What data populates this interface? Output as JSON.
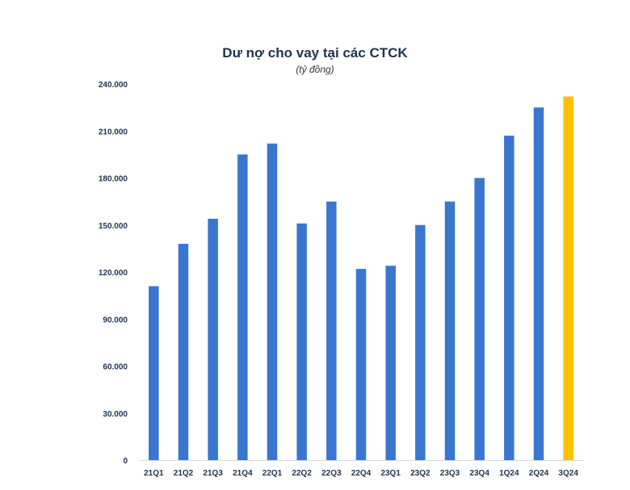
{
  "chart_data": {
    "type": "bar",
    "title": "Dư nợ cho vay tại các CTCK",
    "subtitle": "(tỷ đồng)",
    "xlabel": "",
    "ylabel": "",
    "categories": [
      "21Q1",
      "21Q2",
      "21Q3",
      "21Q4",
      "22Q1",
      "22Q2",
      "22Q3",
      "22Q4",
      "23Q1",
      "23Q2",
      "23Q3",
      "23Q4",
      "1Q24",
      "2Q24",
      "3Q24"
    ],
    "values": [
      111000,
      138000,
      154000,
      195000,
      202000,
      151000,
      165000,
      122000,
      124000,
      150000,
      165000,
      180000,
      207000,
      225000,
      232000
    ],
    "ylim": [
      0,
      240000
    ],
    "yticks": [
      0,
      30000,
      60000,
      90000,
      120000,
      150000,
      180000,
      210000,
      240000
    ],
    "ytick_labels": [
      "0",
      "30.000",
      "60.000",
      "90.000",
      "120.000",
      "150.000",
      "180.000",
      "210.000",
      "240.000"
    ],
    "grid": false,
    "colors": {
      "default": "#3a76d0",
      "highlight": "#ffc000",
      "axis": "#d9d9d9",
      "text": "#1f3350"
    },
    "highlight_index": 14
  }
}
